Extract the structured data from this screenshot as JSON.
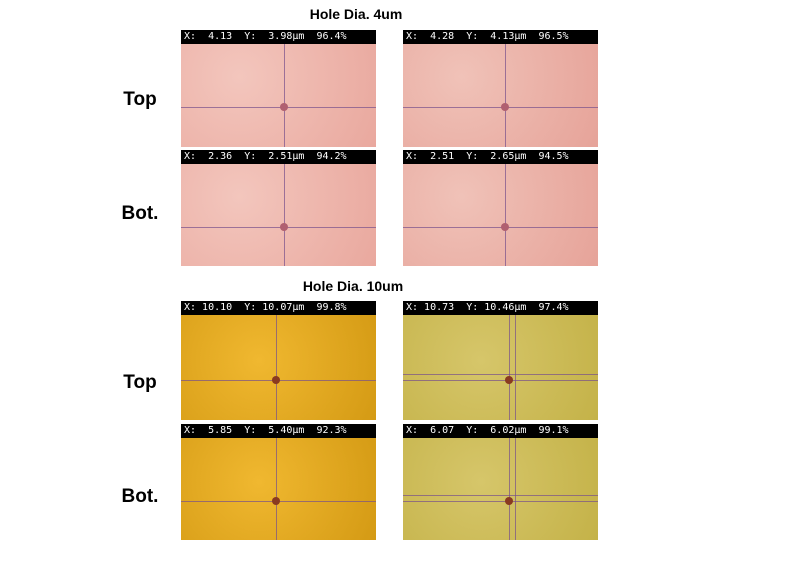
{
  "sections": [
    {
      "title": "Hole Dia. 4um",
      "rows": [
        {
          "label": "Top",
          "images": [
            "X:  4.13  Y:  3.98μm  96.4%",
            "X:  4.28  Y:  4.13μm  96.5%"
          ]
        },
        {
          "label": "Bot.",
          "images": [
            "X:  2.36  Y:  2.51μm  94.2%",
            "X:  2.51  Y:  2.65μm  94.5%"
          ]
        }
      ]
    },
    {
      "title": "Hole Dia. 10um",
      "rows": [
        {
          "label": "Top",
          "images": [
            "X: 10.10  Y: 10.07μm  99.8%",
            "X: 10.73  Y: 10.46μm  97.4%"
          ]
        },
        {
          "label": "Bot.",
          "images": [
            "X:  5.85  Y:  5.40μm  92.3%",
            "X:  6.07  Y:  6.02μm  99.1%"
          ]
        }
      ]
    }
  ]
}
